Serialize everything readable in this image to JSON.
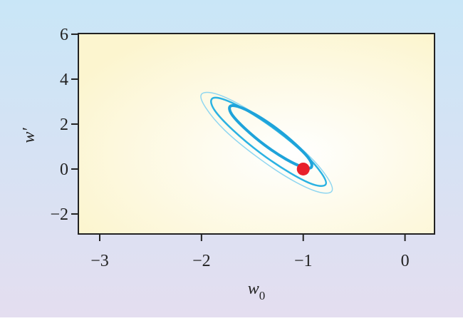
{
  "chart_data": {
    "type": "contour",
    "xlabel": "w",
    "xlabel_subscript": "0",
    "ylabel": "w′",
    "xlim": [
      -3.21,
      0.29
    ],
    "ylim": [
      -2.89,
      6.03
    ],
    "xticks": [
      {
        "value": -3,
        "label": "−3"
      },
      {
        "value": -2,
        "label": "−2"
      },
      {
        "value": -1,
        "label": "−1"
      },
      0
    ],
    "yticks": [
      {
        "value": -2,
        "label": "−2"
      },
      0,
      2,
      4,
      6
    ],
    "contours": [
      {
        "color": "#8fd6f0",
        "width": 1.5,
        "x": [
          -0.72,
          -0.86,
          -1.13,
          -1.46,
          -1.77,
          -1.96,
          -2.0,
          -1.86,
          -1.59,
          -1.26,
          -0.95,
          -0.76
        ],
        "y": [
          -0.99,
          -1.01,
          -0.44,
          0.56,
          1.72,
          2.74,
          3.33,
          3.35,
          2.78,
          1.78,
          0.62,
          -0.4
        ]
      },
      {
        "color": "#2bb2e2",
        "width": 2.5,
        "x": [
          -0.78,
          -0.9,
          -1.13,
          -1.42,
          -1.69,
          -1.87,
          -1.9,
          -1.79,
          -1.55,
          -1.26,
          -0.99,
          -0.82
        ],
        "y": [
          -0.69,
          -0.69,
          -0.17,
          0.71,
          1.73,
          2.61,
          3.11,
          3.11,
          2.59,
          1.71,
          0.69,
          -0.19
        ]
      },
      {
        "color": "#1ea3da",
        "width": 4,
        "x": [
          -0.92,
          -1.0,
          -1.17,
          -1.38,
          -1.57,
          -1.7,
          -1.72,
          -1.64,
          -1.47,
          -1.26,
          -1.07,
          -0.94
        ],
        "y": [
          0.08,
          0.08,
          0.44,
          1.07,
          1.79,
          2.42,
          2.78,
          2.78,
          2.42,
          1.79,
          1.07,
          0.44
        ]
      }
    ],
    "point": {
      "x": -1,
      "y": 0,
      "color": "#e8202a"
    }
  }
}
